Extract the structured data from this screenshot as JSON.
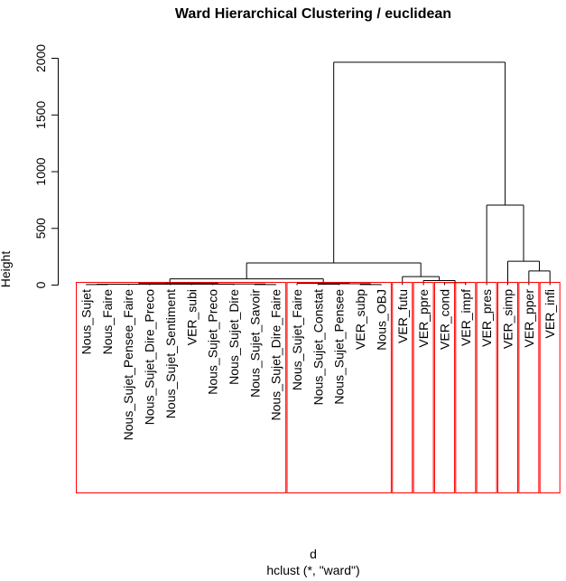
{
  "chart_data": {
    "type": "dendrogram",
    "title": "Ward Hierarchical Clustering / euclidean",
    "ylabel": "Height",
    "xlabel": "d",
    "sublabel": "hclust (*, \"ward\")",
    "ylim": [
      0,
      2000
    ],
    "yticks": [
      0,
      500,
      1000,
      1500,
      2000
    ],
    "leaves": [
      "Nous_Sujet",
      "Nous_Faire",
      "Nous_Sujet_Pensee_Faire",
      "Nous_Sujet_Dire_Preco",
      "Nous_Sujet_Sentiment",
      "VER_subi",
      "Nous_Sujet_Preco",
      "Nous_Sujet_Dire",
      "Nous_Sujet_Savoir",
      "Nous_Sujet_Dire_Faire",
      "Nous_Sujet_Faire",
      "Nous_Sujet_Constat",
      "Nous_Sujet_Pensee",
      "VER_subp",
      "Nous_OBJ",
      "VER_futu",
      "VER_ppre",
      "VER_cond",
      "VER_impf",
      "VER_pres",
      "VER_simp",
      "VER_pper",
      "VER_infi"
    ],
    "merges": [
      {
        "a": 0,
        "b": 1,
        "h": 5
      },
      {
        "a": 8,
        "b": 9,
        "h": 5
      },
      {
        "a": 2,
        "b": 3,
        "h": 8
      },
      {
        "a": 24,
        "b": 4,
        "h": 10
      },
      {
        "a": 5,
        "b": 6,
        "h": 10
      },
      {
        "a": 7,
        "b": 23,
        "h": 8
      },
      {
        "a": 27,
        "b": 28,
        "h": 12
      },
      {
        "a": 26,
        "b": 29,
        "h": 15
      },
      {
        "a": 25,
        "b": 30,
        "h": 18
      },
      {
        "a": 13,
        "b": 14,
        "h": 5
      },
      {
        "a": 11,
        "b": 12,
        "h": 8
      },
      {
        "a": 33,
        "b": 32,
        "h": 12
      },
      {
        "a": 10,
        "b": 34,
        "h": 15
      },
      {
        "a": 31,
        "b": 35,
        "h": 55
      },
      {
        "a": 18,
        "b": 17,
        "h": 22
      },
      {
        "a": 37,
        "b": 16,
        "h": 40
      },
      {
        "a": 38,
        "b": 15,
        "h": 75
      },
      {
        "a": 36,
        "b": 39,
        "h": 195
      },
      {
        "a": 21,
        "b": 22,
        "h": 125
      },
      {
        "a": 20,
        "b": 41,
        "h": 210
      },
      {
        "a": 19,
        "b": 42,
        "h": 705
      },
      {
        "a": 40,
        "b": 43,
        "h": 1965
      }
    ],
    "cluster_boxes": [
      {
        "from": 0,
        "to": 9
      },
      {
        "from": 10,
        "to": 14
      },
      {
        "from": 15,
        "to": 15
      },
      {
        "from": 16,
        "to": 16
      },
      {
        "from": 17,
        "to": 17
      },
      {
        "from": 18,
        "to": 18
      },
      {
        "from": 19,
        "to": 19
      },
      {
        "from": 20,
        "to": 20
      },
      {
        "from": 21,
        "to": 21
      },
      {
        "from": 22,
        "to": 22
      }
    ],
    "colors": {
      "line": "#000000",
      "box": "#ff0000"
    }
  }
}
